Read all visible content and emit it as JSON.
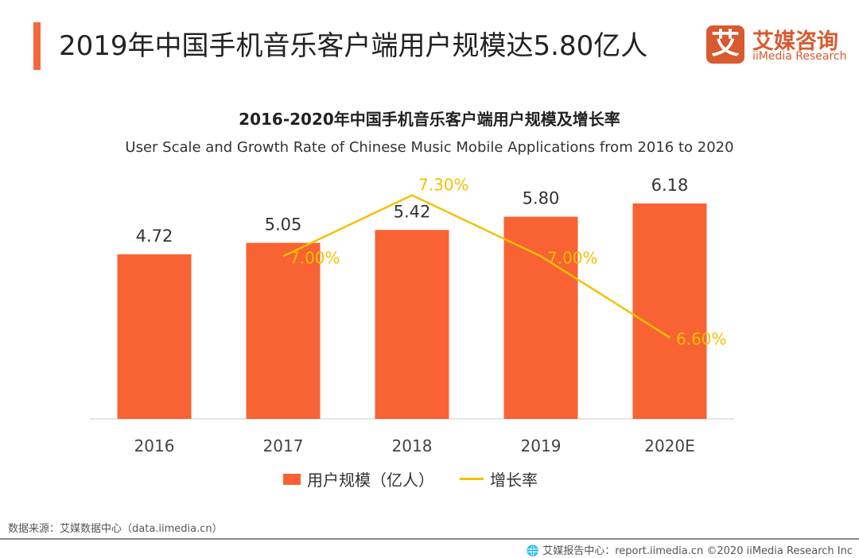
{
  "header": {
    "title": "2019年中国手机音乐客户端用户规模达5.80亿人"
  },
  "logo": {
    "mark": "艾",
    "cn": "艾媒咨询",
    "en": "iiMedia Research"
  },
  "chart_data": {
    "type": "bar",
    "title": "2016-2020年中国手机音乐客户端用户规模及增长率",
    "subtitle": "User Scale and Growth Rate of Chinese Music Mobile Applications from 2016 to 2020",
    "categories": [
      "2016",
      "2017",
      "2018",
      "2019",
      "2020E"
    ],
    "series": [
      {
        "name": "用户规模（亿人）",
        "type": "bar",
        "color": "#f96233",
        "values": [
          4.72,
          5.05,
          5.42,
          5.8,
          6.18
        ],
        "labels": [
          "4.72",
          "5.05",
          "5.42",
          "5.80",
          "6.18"
        ]
      },
      {
        "name": "增长率",
        "type": "line",
        "color": "#f5c000",
        "values": [
          null,
          7.0,
          7.3,
          7.0,
          6.6
        ],
        "labels": [
          "",
          "7.00%",
          "7.30%",
          "7.00%",
          "6.60%"
        ]
      }
    ],
    "ylim": [
      0,
      7
    ],
    "y2lim": [
      6.2,
      7.4
    ],
    "grid": false,
    "legend": "bottom"
  },
  "footer": {
    "source": "数据来源：艾媒数据中心（data.iimedia.cn）",
    "copyright": "艾媒报告中心：report.iimedia.cn ©2020 iiMedia Research Inc"
  }
}
